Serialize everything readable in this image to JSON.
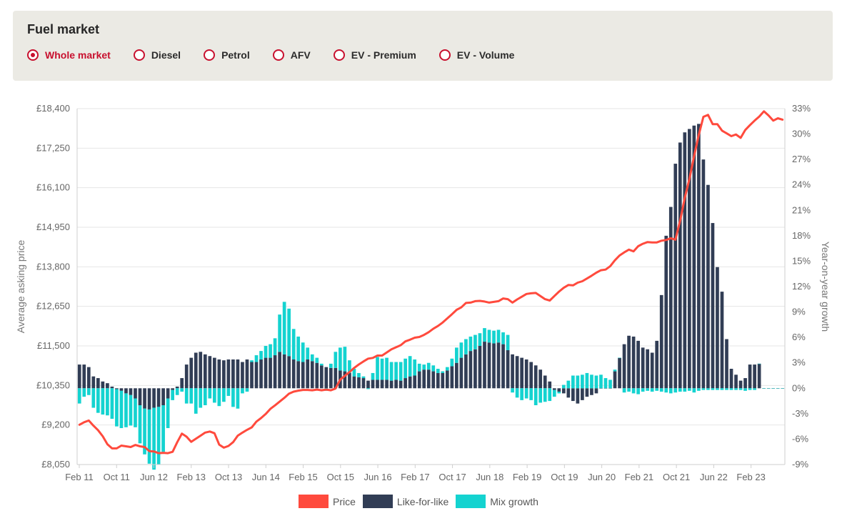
{
  "filter": {
    "title": "Fuel market",
    "options": [
      {
        "label": "Whole market",
        "selected": true
      },
      {
        "label": "Diesel",
        "selected": false
      },
      {
        "label": "Petrol",
        "selected": false
      },
      {
        "label": "AFV",
        "selected": false
      },
      {
        "label": "EV - Premium",
        "selected": false
      },
      {
        "label": "EV - Volume",
        "selected": false
      }
    ]
  },
  "legend": [
    {
      "label": "Price",
      "color": "#ff4a3d"
    },
    {
      "label": "Like-for-like",
      "color": "#313d55"
    },
    {
      "label": "Mix growth",
      "color": "#14d3d0"
    }
  ],
  "chart_data": {
    "type": "bar",
    "ylabel": "Average asking price",
    "y2label": "Year-on-year growth",
    "y_ticks": [
      "£18,400",
      "£17,250",
      "£16,100",
      "£14,950",
      "£13,800",
      "£12,650",
      "£11,500",
      "£10,350",
      "£9,200",
      "£8,050"
    ],
    "ylim": [
      8050,
      18400
    ],
    "y2_ticks": [
      "33%",
      "30%",
      "27%",
      "24%",
      "21%",
      "18%",
      "15%",
      "12%",
      "9%",
      "6%",
      "3%",
      "0%",
      "-3%",
      "-6%",
      "-9%"
    ],
    "y2lim": [
      -9,
      33
    ],
    "x_ticks": [
      "Feb 11",
      "Oct 11",
      "Jun 12",
      "Feb 13",
      "Oct 13",
      "Jun 14",
      "Feb 15",
      "Oct 15",
      "Jun 16",
      "Feb 17",
      "Oct 17",
      "Jun 18",
      "Feb 19",
      "Oct 19",
      "Jun 20",
      "Feb 21",
      "Oct 21",
      "Jun 22",
      "Feb 23"
    ],
    "grid": true,
    "series": [
      {
        "name": "Like-for-like",
        "color": "#313d55",
        "values": [
          2.8,
          2.8,
          2.5,
          1.4,
          1.2,
          0.8,
          0.6,
          0.2,
          -0.1,
          -0.3,
          -0.6,
          -0.8,
          -1.2,
          -2.0,
          -2.4,
          -2.5,
          -2.3,
          -2.2,
          -2.0,
          -1.2,
          -0.2,
          0.2,
          1.2,
          2.8,
          3.6,
          4.2,
          4.3,
          4.0,
          3.8,
          3.6,
          3.4,
          3.3,
          3.4,
          3.4,
          3.4,
          3.1,
          3.4,
          3.1,
          3.1,
          3.4,
          3.6,
          3.6,
          3.9,
          4.3,
          4.0,
          3.8,
          3.4,
          3.2,
          3.1,
          3.4,
          3.2,
          3.0,
          2.7,
          2.5,
          2.4,
          2.4,
          2.1,
          2.0,
          1.8,
          1.4,
          1.3,
          1.2,
          0.9,
          1.0,
          1.0,
          1.0,
          1.0,
          0.9,
          1.0,
          0.9,
          1.2,
          1.4,
          1.5,
          2.0,
          2.2,
          2.2,
          2.0,
          1.8,
          1.8,
          2.1,
          2.6,
          3.0,
          3.6,
          4.0,
          4.4,
          4.6,
          5.0,
          5.5,
          5.4,
          5.3,
          5.4,
          5.2,
          4.5,
          4.0,
          3.8,
          3.6,
          3.4,
          3.1,
          2.7,
          2.2,
          1.5,
          0.8,
          -0.2,
          -0.4,
          -0.6,
          -1.1,
          -1.5,
          -1.8,
          -1.4,
          -1.0,
          -0.8,
          -0.6,
          0.0,
          0.0,
          0.0,
          2.0,
          3.6,
          5.2,
          6.2,
          6.1,
          5.6,
          4.8,
          4.6,
          4.2,
          5.6,
          11.0,
          18.0,
          21.4,
          26.5,
          29.0,
          30.2,
          30.6,
          31.0,
          31.2,
          27.0,
          24.0,
          19.5,
          14.3,
          11.4,
          5.8,
          2.3,
          1.6,
          0.9,
          1.2,
          2.8,
          2.8,
          2.9
        ]
      },
      {
        "name": "Mix growth",
        "color": "#14d3d0",
        "values": [
          -1.8,
          -1.0,
          -0.8,
          -2.3,
          -2.9,
          -3.1,
          -3.2,
          -3.6,
          -4.4,
          -4.4,
          -4.0,
          -3.6,
          -3.4,
          -4.5,
          -5.4,
          -6.4,
          -7.3,
          -6.8,
          -5.5,
          -3.5,
          -1.2,
          -0.8,
          -0.4,
          -1.8,
          -1.8,
          -3.0,
          -2.3,
          -2.0,
          -1.2,
          -1.7,
          -2.1,
          -1.6,
          -0.9,
          -2.2,
          -2.4,
          -0.6,
          -0.4,
          0.2,
          0.8,
          1.0,
          1.4,
          1.6,
          2.0,
          4.4,
          6.2,
          5.6,
          3.6,
          2.9,
          2.3,
          1.4,
          0.8,
          0.6,
          0.2,
          -0.3,
          0.5,
          1.9,
          2.7,
          2.9,
          1.5,
          0.9,
          0.5,
          0.2,
          -0.1,
          0.8,
          2.7,
          2.5,
          2.6,
          2.2,
          2.1,
          2.2,
          2.3,
          2.4,
          1.9,
          0.9,
          0.6,
          0.8,
          0.7,
          0.5,
          0.2,
          0.4,
          0.9,
          1.8,
          1.8,
          1.8,
          1.7,
          1.7,
          1.5,
          1.6,
          1.5,
          1.5,
          1.5,
          1.4,
          1.8,
          -0.5,
          -1.1,
          -1.4,
          -1.2,
          -1.4,
          -2.0,
          -1.7,
          -1.6,
          -1.5,
          -0.8,
          -0.2,
          0.4,
          0.9,
          1.5,
          1.5,
          1.6,
          1.8,
          1.6,
          1.5,
          1.6,
          1.2,
          1.0,
          0.2,
          0.0,
          -0.5,
          -0.4,
          -0.6,
          -0.7,
          -0.4,
          -0.3,
          -0.4,
          -0.3,
          -0.4,
          -0.5,
          -0.6,
          -0.5,
          -0.4,
          -0.4,
          -0.3,
          -0.5,
          -0.3,
          -0.2,
          -0.2,
          -0.2,
          -0.2,
          -0.2,
          -0.2,
          -0.2,
          -0.2,
          -0.2,
          -0.3,
          -0.2,
          -0.2
        ]
      },
      {
        "name": "Price",
        "color": "#ff4a3d",
        "values": [
          9208,
          9280,
          9330,
          9180,
          9050,
          8870,
          8640,
          8520,
          8520,
          8600,
          8580,
          8560,
          8620,
          8580,
          8560,
          8440,
          8430,
          8380,
          8390,
          8380,
          8420,
          8700,
          8950,
          8860,
          8710,
          8800,
          8890,
          8980,
          9010,
          8960,
          8630,
          8540,
          8590,
          8700,
          8890,
          8980,
          9060,
          9130,
          9300,
          9400,
          9520,
          9670,
          9770,
          9880,
          9990,
          10110,
          10170,
          10200,
          10220,
          10220,
          10210,
          10230,
          10210,
          10230,
          10210,
          10260,
          10520,
          10630,
          10740,
          10860,
          10960,
          11050,
          11130,
          11150,
          11220,
          11220,
          11310,
          11400,
          11460,
          11520,
          11630,
          11680,
          11740,
          11760,
          11820,
          11900,
          12000,
          12080,
          12180,
          12300,
          12420,
          12550,
          12620,
          12750,
          12760,
          12800,
          12810,
          12790,
          12760,
          12780,
          12800,
          12880,
          12860,
          12760,
          12850,
          12930,
          13010,
          13030,
          13040,
          12950,
          12860,
          12820,
          12950,
          13080,
          13190,
          13270,
          13260,
          13340,
          13380,
          13460,
          13540,
          13630,
          13700,
          13720,
          13820,
          13990,
          14130,
          14220,
          14300,
          14250,
          14400,
          14470,
          14520,
          14510,
          14510,
          14560,
          14580,
          14630,
          14590,
          15140,
          15800,
          16350,
          17020,
          17630,
          18160,
          18220,
          17950,
          17950,
          17760,
          17680,
          17600,
          17650,
          17550,
          17780,
          17920,
          18050,
          18170,
          18320,
          18200,
          18050,
          18120,
          18080
        ]
      }
    ]
  }
}
